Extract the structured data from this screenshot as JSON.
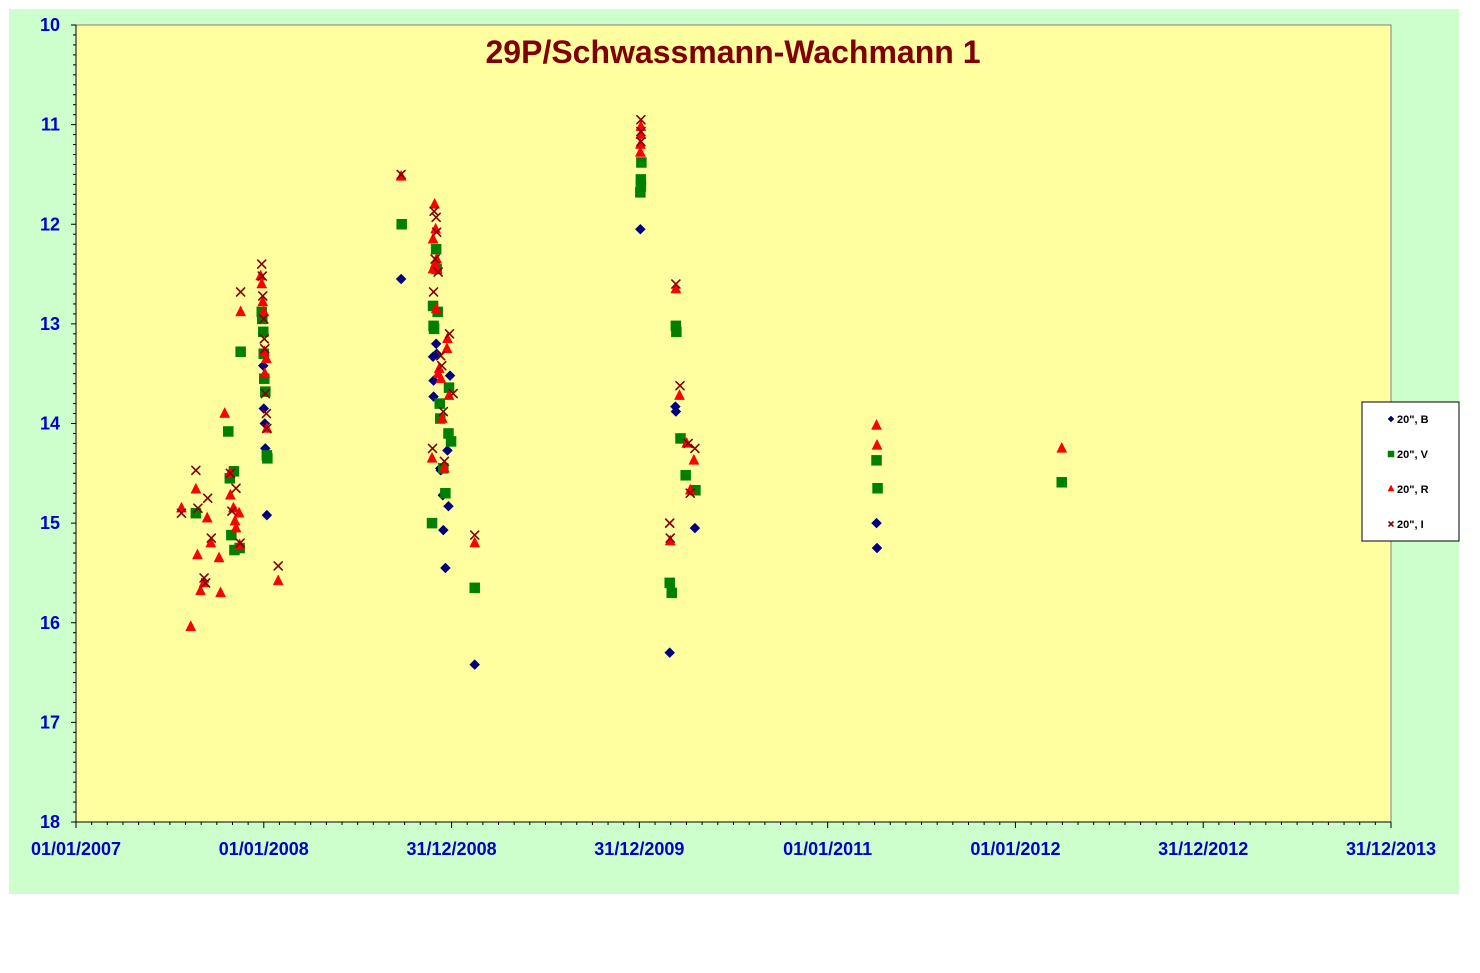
{
  "chart_data": {
    "type": "scatter",
    "title": "29P/Schwassmann-Wachmann 1",
    "xlabel": "",
    "ylabel": "",
    "x_ticks": [
      "01/01/2007",
      "01/01/2008",
      "31/12/2008",
      "31/12/2009",
      "01/01/2011",
      "01/01/2012",
      "31/12/2012",
      "31/12/2013"
    ],
    "x_range": [
      "2007-01-01",
      "2013-12-31"
    ],
    "y_ticks": [
      10,
      11,
      12,
      13,
      14,
      15,
      16,
      17,
      18
    ],
    "ylim": [
      18,
      10
    ],
    "y_inverted": true,
    "grid": false,
    "legend_position": "right",
    "colors": {
      "plot_bg": "#ffffa0",
      "chart_bg": "#ccffcc",
      "title": "#800000",
      "ticks": "#0000cc",
      "B": "#000080",
      "V": "#008000",
      "R": "#ff0000",
      "I": "#800000"
    },
    "series": [
      {
        "name": "20\", B",
        "marker": "diamond",
        "points": [
          [
            "2007-12-31",
            13.42
          ],
          [
            "2008-01-01",
            13.85
          ],
          [
            "2008-01-03",
            14.0
          ],
          [
            "2008-01-04",
            14.25
          ],
          [
            "2008-01-07",
            14.92
          ],
          [
            "2008-09-24",
            12.55
          ],
          [
            "2008-11-25",
            13.33
          ],
          [
            "2008-11-26",
            13.57
          ],
          [
            "2008-11-26",
            13.73
          ],
          [
            "2008-12-01",
            13.2
          ],
          [
            "2008-12-02",
            13.3
          ],
          [
            "2008-12-09",
            14.45
          ],
          [
            "2008-12-10",
            14.47
          ],
          [
            "2008-12-14",
            14.72
          ],
          [
            "2008-12-15",
            15.07
          ],
          [
            "2008-12-19",
            15.45
          ],
          [
            "2008-12-23",
            14.27
          ],
          [
            "2008-12-25",
            14.83
          ],
          [
            "2008-12-28",
            13.52
          ],
          [
            "2009-02-14",
            16.42
          ],
          [
            "2010-01-02",
            12.05
          ],
          [
            "2010-02-28",
            16.3
          ],
          [
            "2010-03-11",
            13.83
          ],
          [
            "2010-03-12",
            13.88
          ],
          [
            "2010-04-18",
            15.05
          ],
          [
            "2011-04-06",
            15.0
          ],
          [
            "2011-04-07",
            15.25
          ]
        ]
      },
      {
        "name": "20\", V",
        "marker": "square",
        "points": [
          [
            "2007-08-22",
            14.9
          ],
          [
            "2007-10-24",
            14.08
          ],
          [
            "2007-10-27",
            14.55
          ],
          [
            "2007-10-30",
            15.12
          ],
          [
            "2007-11-04",
            14.48
          ],
          [
            "2007-11-05",
            15.27
          ],
          [
            "2007-11-15",
            15.25
          ],
          [
            "2007-11-17",
            13.28
          ],
          [
            "2007-12-28",
            12.88
          ],
          [
            "2007-12-29",
            12.95
          ],
          [
            "2007-12-31",
            13.08
          ],
          [
            "2008-01-01",
            13.3
          ],
          [
            "2008-01-02",
            13.55
          ],
          [
            "2008-01-04",
            13.68
          ],
          [
            "2008-01-07",
            14.32
          ],
          [
            "2008-01-08",
            14.35
          ],
          [
            "2008-09-25",
            12.0
          ],
          [
            "2008-11-23",
            15.0
          ],
          [
            "2008-11-25",
            12.82
          ],
          [
            "2008-11-26",
            13.02
          ],
          [
            "2008-11-27",
            13.05
          ],
          [
            "2008-12-01",
            12.25
          ],
          [
            "2008-12-02",
            12.45
          ],
          [
            "2008-12-04",
            12.88
          ],
          [
            "2008-12-08",
            13.8
          ],
          [
            "2008-12-09",
            13.95
          ],
          [
            "2008-12-15",
            14.45
          ],
          [
            "2008-12-19",
            14.7
          ],
          [
            "2008-12-25",
            14.1
          ],
          [
            "2008-12-26",
            13.64
          ],
          [
            "2008-12-30",
            14.18
          ],
          [
            "2009-02-14",
            15.65
          ],
          [
            "2010-01-02",
            11.68
          ],
          [
            "2010-01-03",
            11.62
          ],
          [
            "2010-01-03",
            11.55
          ],
          [
            "2010-01-04",
            11.38
          ],
          [
            "2010-02-28",
            15.6
          ],
          [
            "2010-03-04",
            15.7
          ],
          [
            "2010-03-12",
            13.02
          ],
          [
            "2010-03-13",
            13.08
          ],
          [
            "2010-03-21",
            14.15
          ],
          [
            "2010-03-31",
            14.52
          ],
          [
            "2010-04-19",
            14.67
          ],
          [
            "2011-04-06",
            14.37
          ],
          [
            "2011-04-08",
            14.65
          ],
          [
            "2012-03-31",
            14.59
          ]
        ]
      },
      {
        "name": "20\", R",
        "marker": "triangle",
        "points": [
          [
            "2007-07-25",
            14.85
          ],
          [
            "2007-08-12",
            16.04
          ],
          [
            "2007-08-22",
            14.66
          ],
          [
            "2007-08-25",
            15.32
          ],
          [
            "2007-08-31",
            15.68
          ],
          [
            "2007-09-07",
            15.6
          ],
          [
            "2007-09-13",
            14.95
          ],
          [
            "2007-09-20",
            15.2
          ],
          [
            "2007-10-06",
            15.35
          ],
          [
            "2007-10-09",
            15.7
          ],
          [
            "2007-10-17",
            13.9
          ],
          [
            "2007-10-27",
            14.5
          ],
          [
            "2007-10-28",
            14.72
          ],
          [
            "2007-11-03",
            14.85
          ],
          [
            "2007-11-06",
            14.98
          ],
          [
            "2007-11-08",
            15.05
          ],
          [
            "2007-11-14",
            14.9
          ],
          [
            "2007-11-15",
            15.22
          ],
          [
            "2007-11-17",
            12.88
          ],
          [
            "2007-12-26",
            12.52
          ],
          [
            "2007-12-28",
            12.6
          ],
          [
            "2007-12-30",
            12.78
          ],
          [
            "2008-01-01",
            12.88
          ],
          [
            "2008-01-02",
            13.28
          ],
          [
            "2008-01-03",
            13.5
          ],
          [
            "2008-01-06",
            13.35
          ],
          [
            "2008-01-07",
            14.05
          ],
          [
            "2008-01-29",
            15.58
          ],
          [
            "2008-09-24",
            11.52
          ],
          [
            "2008-11-23",
            14.35
          ],
          [
            "2008-11-25",
            12.45
          ],
          [
            "2008-11-25",
            12.15
          ],
          [
            "2008-11-28",
            11.8
          ],
          [
            "2008-11-29",
            12.4
          ],
          [
            "2008-11-30",
            12.05
          ],
          [
            "2008-12-01",
            12.85
          ],
          [
            "2008-12-02",
            12.35
          ],
          [
            "2008-12-03",
            12.45
          ],
          [
            "2008-12-05",
            13.5
          ],
          [
            "2008-12-07",
            13.45
          ],
          [
            "2008-12-10",
            13.55
          ],
          [
            "2008-12-13",
            13.95
          ],
          [
            "2008-12-17",
            14.45
          ],
          [
            "2008-12-22",
            13.25
          ],
          [
            "2008-12-23",
            13.15
          ],
          [
            "2008-12-26",
            13.72
          ],
          [
            "2009-02-14",
            15.2
          ],
          [
            "2010-01-02",
            11.28
          ],
          [
            "2010-01-02",
            11.2
          ],
          [
            "2010-01-03",
            11.1
          ],
          [
            "2010-01-03",
            11.02
          ],
          [
            "2010-03-01",
            15.18
          ],
          [
            "2010-03-12",
            12.65
          ],
          [
            "2010-03-19",
            13.72
          ],
          [
            "2010-04-02",
            14.2
          ],
          [
            "2010-04-09",
            14.67
          ],
          [
            "2010-04-16",
            14.37
          ],
          [
            "2011-04-06",
            14.02
          ],
          [
            "2011-04-07",
            14.22
          ],
          [
            "2012-03-31",
            14.25
          ]
        ]
      },
      {
        "name": "20\", I",
        "marker": "x",
        "points": [
          [
            "2007-07-25",
            14.9
          ],
          [
            "2007-08-22",
            14.47
          ],
          [
            "2007-08-26",
            14.85
          ],
          [
            "2007-09-07",
            15.55
          ],
          [
            "2007-09-10",
            15.6
          ],
          [
            "2007-09-14",
            14.75
          ],
          [
            "2007-09-21",
            15.15
          ],
          [
            "2007-10-28",
            14.5
          ],
          [
            "2007-10-31",
            14.88
          ],
          [
            "2007-11-08",
            14.65
          ],
          [
            "2007-11-16",
            15.2
          ],
          [
            "2007-11-17",
            12.68
          ],
          [
            "2007-12-28",
            12.4
          ],
          [
            "2007-12-29",
            12.52
          ],
          [
            "2007-12-30",
            12.72
          ],
          [
            "2008-01-01",
            12.95
          ],
          [
            "2008-01-02",
            13.15
          ],
          [
            "2008-01-03",
            13.25
          ],
          [
            "2008-01-04",
            13.7
          ],
          [
            "2008-01-06",
            13.9
          ],
          [
            "2008-01-07",
            14.05
          ],
          [
            "2008-01-29",
            15.43
          ],
          [
            "2008-09-24",
            11.5
          ],
          [
            "2008-11-24",
            14.25
          ],
          [
            "2008-11-26",
            12.68
          ],
          [
            "2008-11-27",
            11.87
          ],
          [
            "2008-11-29",
            12.35
          ],
          [
            "2008-12-01",
            11.93
          ],
          [
            "2008-12-02",
            12.08
          ],
          [
            "2008-12-05",
            12.48
          ],
          [
            "2008-12-10",
            13.32
          ],
          [
            "2008-12-12",
            13.42
          ],
          [
            "2008-12-15",
            13.88
          ],
          [
            "2008-12-17",
            14.38
          ],
          [
            "2008-12-27",
            13.1
          ],
          [
            "2009-01-03",
            13.7
          ],
          [
            "2009-02-14",
            15.12
          ],
          [
            "2010-01-03",
            10.95
          ],
          [
            "2010-01-03",
            11.07
          ],
          [
            "2010-01-03",
            11.17
          ],
          [
            "2010-02-28",
            15.0
          ],
          [
            "2010-03-01",
            15.15
          ],
          [
            "2010-03-12",
            12.6
          ],
          [
            "2010-03-20",
            13.62
          ],
          [
            "2010-04-05",
            14.2
          ],
          [
            "2010-04-09",
            14.7
          ],
          [
            "2010-04-18",
            14.25
          ]
        ]
      }
    ]
  }
}
